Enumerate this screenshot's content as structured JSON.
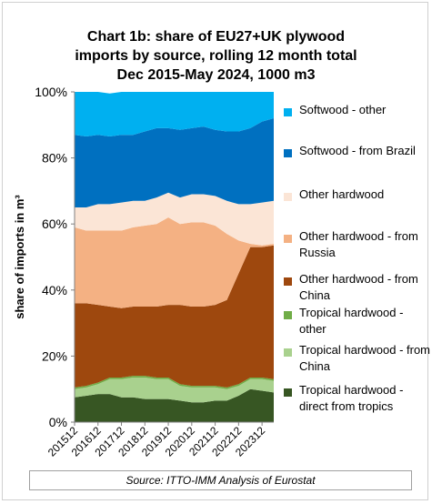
{
  "chart_data": {
    "type": "area",
    "stacked": true,
    "title_lines": [
      "Chart 1b: share of EU27+UK plywood",
      "imports by source, rolling 12 month total",
      "Dec 2015-May 2024, 1000 m3"
    ],
    "ylabel": "share of imports in m³",
    "ylim": [
      0,
      100
    ],
    "ytick_labels": [
      "0%",
      "20%",
      "40%",
      "60%",
      "80%",
      "100%"
    ],
    "xtick_labels": [
      "201512",
      "201612",
      "201712",
      "201812",
      "201912",
      "202012",
      "202112",
      "202212",
      "202312"
    ],
    "x": [
      "201512",
      "201606",
      "201612",
      "201706",
      "201712",
      "201806",
      "201812",
      "201906",
      "201912",
      "202006",
      "202012",
      "202106",
      "202112",
      "202206",
      "202212",
      "202306",
      "202312",
      "202405"
    ],
    "series": [
      {
        "name": "Tropical hardwood - direct from tropics",
        "color": "#375623",
        "values": [
          7.5,
          8.0,
          8.5,
          8.5,
          7.5,
          7.5,
          7.0,
          7.0,
          7.0,
          6.5,
          6.0,
          6.0,
          6.5,
          6.5,
          8.0,
          10.0,
          9.5,
          9.0
        ]
      },
      {
        "name": "Tropical hardwood - from China",
        "color": "#a9d18e",
        "values": [
          2.5,
          2.5,
          3.0,
          4.5,
          5.5,
          6.0,
          6.5,
          6.0,
          6.0,
          4.5,
          4.5,
          4.5,
          4.0,
          3.5,
          3.0,
          3.0,
          3.5,
          3.5
        ]
      },
      {
        "name": "Tropical hardwood - other",
        "color": "#70ad47",
        "values": [
          0.5,
          0.5,
          0.5,
          0.5,
          0.5,
          0.5,
          0.5,
          0.5,
          0.5,
          0.5,
          0.5,
          0.5,
          0.5,
          0.5,
          0.5,
          0.5,
          0.5,
          0.5
        ]
      },
      {
        "name": "Other hardwood - from China",
        "color": "#9e480e",
        "values": [
          25.5,
          25.0,
          23.5,
          21.5,
          21.0,
          21.0,
          21.0,
          21.5,
          22.0,
          24.0,
          24.0,
          24.0,
          24.5,
          26.5,
          33.5,
          39.5,
          39.5,
          40.5
        ]
      },
      {
        "name": "Other hardwood - from Russia",
        "color": "#f4b183",
        "values": [
          23.0,
          22.0,
          22.5,
          23.0,
          23.5,
          24.0,
          24.5,
          25.0,
          26.5,
          24.5,
          25.5,
          25.5,
          24.0,
          20.0,
          10.0,
          1.0,
          0.5,
          0.5
        ]
      },
      {
        "name": "Other hardwood",
        "color": "#fbe5d6",
        "values": [
          6.0,
          7.0,
          8.0,
          8.0,
          8.5,
          8.0,
          7.5,
          8.0,
          7.5,
          8.0,
          8.5,
          8.5,
          9.0,
          10.0,
          11.0,
          12.0,
          13.0,
          13.0
        ]
      },
      {
        "name": "Softwood - from Brazil",
        "color": "#0070c0",
        "values": [
          22.0,
          21.5,
          21.0,
          20.5,
          20.5,
          20.0,
          21.0,
          21.0,
          19.5,
          20.5,
          20.0,
          20.5,
          20.0,
          21.0,
          22.0,
          23.0,
          24.5,
          25.0
        ]
      },
      {
        "name": "Softwood - other",
        "color": "#00b0f0",
        "values": [
          13.0,
          13.5,
          13.0,
          13.0,
          13.0,
          13.0,
          12.0,
          11.0,
          11.0,
          11.5,
          11.0,
          10.5,
          11.5,
          12.0,
          12.0,
          11.0,
          9.0,
          8.0
        ]
      }
    ],
    "legend_order": [
      7,
      6,
      5,
      4,
      3,
      2,
      1,
      0
    ],
    "legend_placement": "right",
    "source": "Source: ITTO-IMM Analysis of Eurostat"
  }
}
